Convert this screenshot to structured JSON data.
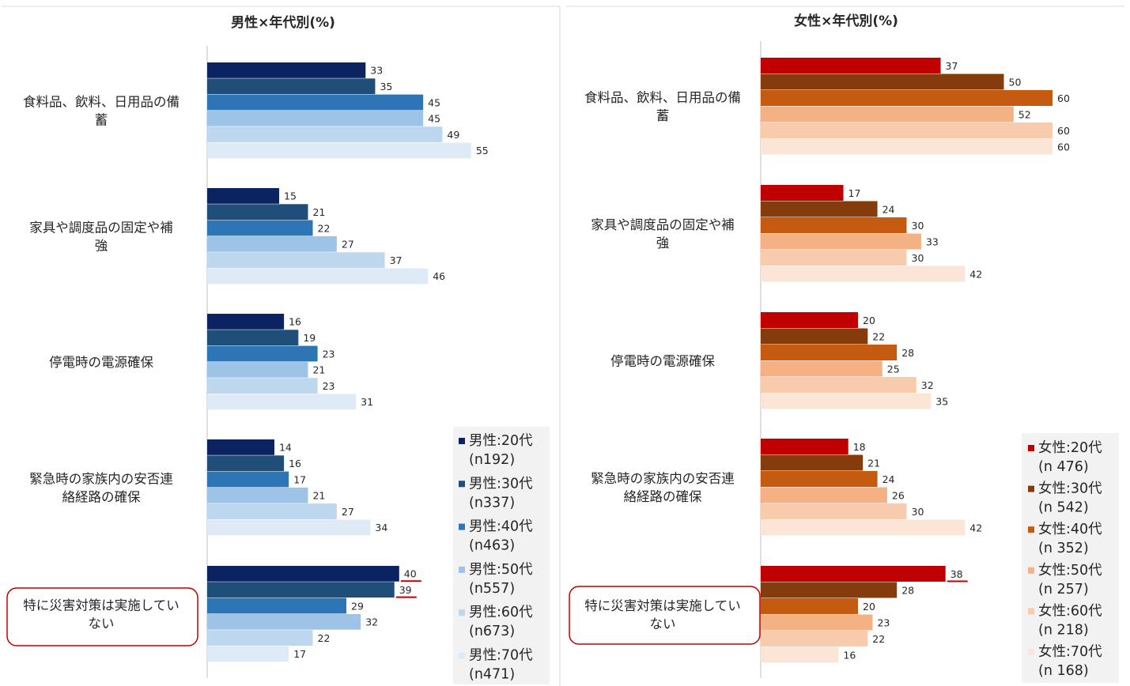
{
  "chart_data": [
    {
      "type": "bar",
      "orientation": "horizontal",
      "title": "男性×年代別(%)",
      "categories": [
        [
          "食料品、飲料、日用品の備",
          "蓄"
        ],
        [
          "家具や調度品の固定や補",
          "強"
        ],
        [
          "停電時の電源確保"
        ],
        [
          "緊急時の家族内の安否連",
          "絡経路の確保"
        ],
        [
          "特に災害対策は実施してい",
          "ない"
        ]
      ],
      "series": [
        {
          "name": "男性:20代",
          "n": "(n192)",
          "color": "#0b2360",
          "values": [
            33,
            15,
            16,
            14,
            40
          ]
        },
        {
          "name": "男性:30代",
          "n": "(n337)",
          "color": "#1f4e79",
          "values": [
            35,
            21,
            19,
            16,
            39
          ]
        },
        {
          "name": "男性:40代",
          "n": "(n463)",
          "color": "#2e75b6",
          "values": [
            45,
            22,
            23,
            17,
            29
          ]
        },
        {
          "name": "男性:50代",
          "n": "(n557)",
          "color": "#9dc3e6",
          "values": [
            45,
            27,
            21,
            21,
            32
          ]
        },
        {
          "name": "男性:60代",
          "n": "(n673)",
          "color": "#bdd7ee",
          "values": [
            49,
            37,
            23,
            27,
            22
          ]
        },
        {
          "name": "男性:70代",
          "n": "(n471)",
          "color": "#deebf7",
          "values": [
            55,
            46,
            31,
            34,
            17
          ]
        }
      ],
      "highlight_category": 4,
      "underlined_values": [
        [
          4,
          0
        ],
        [
          4,
          1
        ]
      ],
      "underline_color": "#c00000",
      "legend_position": "bottom-right",
      "legend_bg": "#f2f2f2",
      "xlim": [
        0,
        100
      ]
    },
    {
      "type": "bar",
      "orientation": "horizontal",
      "title": "女性×年代別(%)",
      "categories": [
        [
          "食料品、飲料、日用品の備",
          "蓄"
        ],
        [
          "家具や調度品の固定や補",
          "強"
        ],
        [
          "停電時の電源確保"
        ],
        [
          "緊急時の家族内の安否連",
          "絡経路の確保"
        ],
        [
          "特に災害対策は実施してい",
          "ない"
        ]
      ],
      "series": [
        {
          "name": "女性:20代",
          "n": "(n 476)",
          "color": "#c00000",
          "values": [
            37,
            17,
            20,
            18,
            38
          ]
        },
        {
          "name": "女性:30代",
          "n": "(n 542)",
          "color": "#843c0c",
          "values": [
            50,
            24,
            22,
            21,
            28
          ]
        },
        {
          "name": "女性:40代",
          "n": "(n 352)",
          "color": "#c55a11",
          "values": [
            60,
            30,
            28,
            24,
            20
          ]
        },
        {
          "name": "女性:50代",
          "n": "(n 257)",
          "color": "#f4b183",
          "values": [
            52,
            33,
            25,
            26,
            23
          ]
        },
        {
          "name": "女性:60代",
          "n": "(n 218)",
          "color": "#f8cbad",
          "values": [
            60,
            30,
            32,
            30,
            22
          ]
        },
        {
          "name": "女性:70代",
          "n": "(n 168)",
          "color": "#fbe5d6",
          "values": [
            60,
            42,
            35,
            42,
            16
          ]
        }
      ],
      "highlight_category": 4,
      "underlined_values": [
        [
          4,
          0
        ]
      ],
      "underline_color": "#c00000",
      "legend_position": "bottom-right",
      "legend_bg": "#f2f2f2",
      "xlim": [
        0,
        100
      ]
    }
  ]
}
